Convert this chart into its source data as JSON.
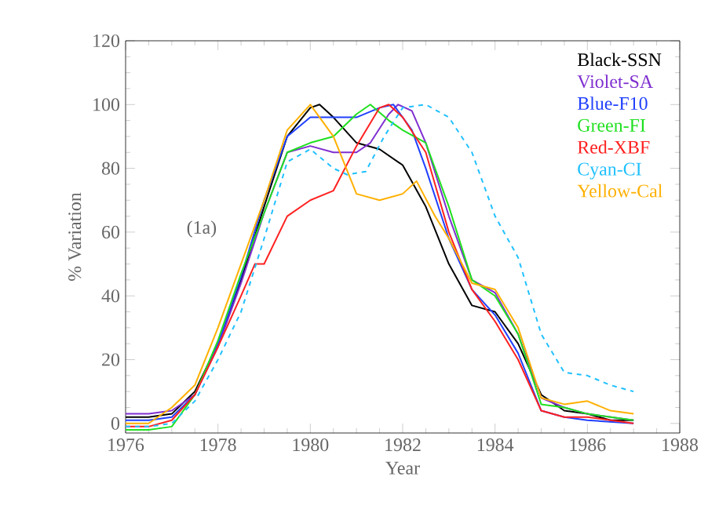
{
  "chart_data": {
    "type": "line",
    "xlabel": "Year",
    "ylabel": "% Variation",
    "annotations": [
      "(1a)"
    ],
    "xlim": [
      1976,
      1988
    ],
    "ylim": [
      -3,
      120
    ],
    "xticks": [
      1976,
      1978,
      1980,
      1982,
      1984,
      1986,
      1988
    ],
    "yticks": [
      0,
      20,
      40,
      60,
      80,
      100,
      120
    ],
    "grid": false,
    "legend": "top right",
    "series": [
      {
        "name": "Black-SSN",
        "color": "#000000",
        "x": [
          1976,
          1976.5,
          1977,
          1977.5,
          1978,
          1978.5,
          1979,
          1979.5,
          1980,
          1980.2,
          1980.5,
          1981,
          1981.5,
          1982,
          1982.5,
          1983,
          1983.5,
          1984,
          1984.5,
          1985,
          1985.5,
          1986,
          1986.5,
          1987
        ],
        "values": [
          2,
          2,
          3,
          10,
          25,
          45,
          68,
          90,
          99,
          100,
          96,
          88,
          86,
          81,
          68,
          50,
          37,
          35,
          25,
          9,
          4,
          3,
          1,
          1
        ]
      },
      {
        "name": "Violet-SA",
        "color": "#7f2fd0",
        "x": [
          1976,
          1976.5,
          1977,
          1977.5,
          1978,
          1978.5,
          1979,
          1979.5,
          1980,
          1980.5,
          1981,
          1981.3,
          1981.7,
          1981.9,
          1982.2,
          1982.5,
          1983,
          1983.5,
          1984,
          1984.5,
          1985,
          1985.5,
          1986,
          1987
        ],
        "values": [
          3,
          3,
          4,
          9,
          24,
          44,
          66,
          85,
          87,
          85,
          85,
          88,
          97,
          100,
          98,
          88,
          65,
          45,
          41,
          28,
          8,
          5,
          3,
          1
        ]
      },
      {
        "name": "Blue-F10",
        "color": "#2040ff",
        "x": [
          1976,
          1976.5,
          1977,
          1977.5,
          1978,
          1978.5,
          1979,
          1979.5,
          1980,
          1980.5,
          1981,
          1981.5,
          1981.8,
          1982.2,
          1982.5,
          1983,
          1983.5,
          1984,
          1984.5,
          1985,
          1985.5,
          1986,
          1987
        ],
        "values": [
          1,
          1,
          2,
          9,
          25,
          46,
          70,
          90,
          96,
          96,
          96,
          99,
          100,
          92,
          80,
          58,
          42,
          34,
          22,
          4,
          2,
          1,
          0
        ]
      },
      {
        "name": "Green-FI",
        "color": "#20e020",
        "x": [
          1976,
          1976.5,
          1977,
          1977.5,
          1978,
          1978.5,
          1979,
          1979.5,
          1980,
          1980.5,
          1981,
          1981.3,
          1981.7,
          1982,
          1982.5,
          1983,
          1983.5,
          1984,
          1984.5,
          1985,
          1985.5,
          1986,
          1987
        ],
        "values": [
          -2,
          -2,
          -1,
          9,
          26,
          47,
          66,
          85,
          88,
          90,
          97,
          100,
          95,
          92,
          88,
          68,
          45,
          40,
          28,
          6,
          5,
          3,
          1
        ]
      },
      {
        "name": "Red-XBF",
        "color": "#ff2020",
        "x": [
          1976,
          1976.5,
          1977,
          1977.5,
          1978,
          1978.5,
          1978.8,
          1979,
          1979.5,
          1980,
          1980.5,
          1981,
          1981.5,
          1981.7,
          1982,
          1982.5,
          1983,
          1983.5,
          1984,
          1984.5,
          1985,
          1985.5,
          1986,
          1987
        ],
        "values": [
          -1,
          -1,
          1,
          9,
          24,
          40,
          50,
          50,
          65,
          70,
          73,
          87,
          99,
          100,
          96,
          85,
          60,
          42,
          32,
          20,
          4,
          2,
          2,
          0
        ]
      },
      {
        "name": "Cyan-CI",
        "color": "#20c0ff",
        "line_style": "dashed",
        "x": [
          1976,
          1976.5,
          1977,
          1977.5,
          1978,
          1978.5,
          1979,
          1979.5,
          1980,
          1980.5,
          1980.8,
          1981.2,
          1981.6,
          1982,
          1982.5,
          1983,
          1983.5,
          1984,
          1984.5,
          1985,
          1985.5,
          1986,
          1986.5,
          1987
        ],
        "values": [
          -1,
          -1,
          0,
          7,
          20,
          35,
          58,
          82,
          86,
          80,
          78,
          79,
          90,
          99,
          100,
          96,
          85,
          65,
          52,
          28,
          16,
          15,
          12,
          10
        ]
      },
      {
        "name": "Yellow-Cal",
        "color": "#ffb000",
        "x": [
          1976,
          1976.5,
          1977,
          1977.5,
          1978,
          1978.5,
          1979,
          1979.5,
          1980,
          1980.5,
          1981,
          1981.5,
          1982,
          1982.3,
          1982.7,
          1983,
          1983.5,
          1984,
          1984.5,
          1985,
          1985.5,
          1986,
          1986.5,
          1987
        ],
        "values": [
          0,
          0,
          5,
          12,
          30,
          50,
          70,
          92,
          100,
          90,
          72,
          70,
          72,
          76,
          65,
          58,
          44,
          42,
          30,
          8,
          6,
          7,
          4,
          3
        ]
      }
    ]
  }
}
